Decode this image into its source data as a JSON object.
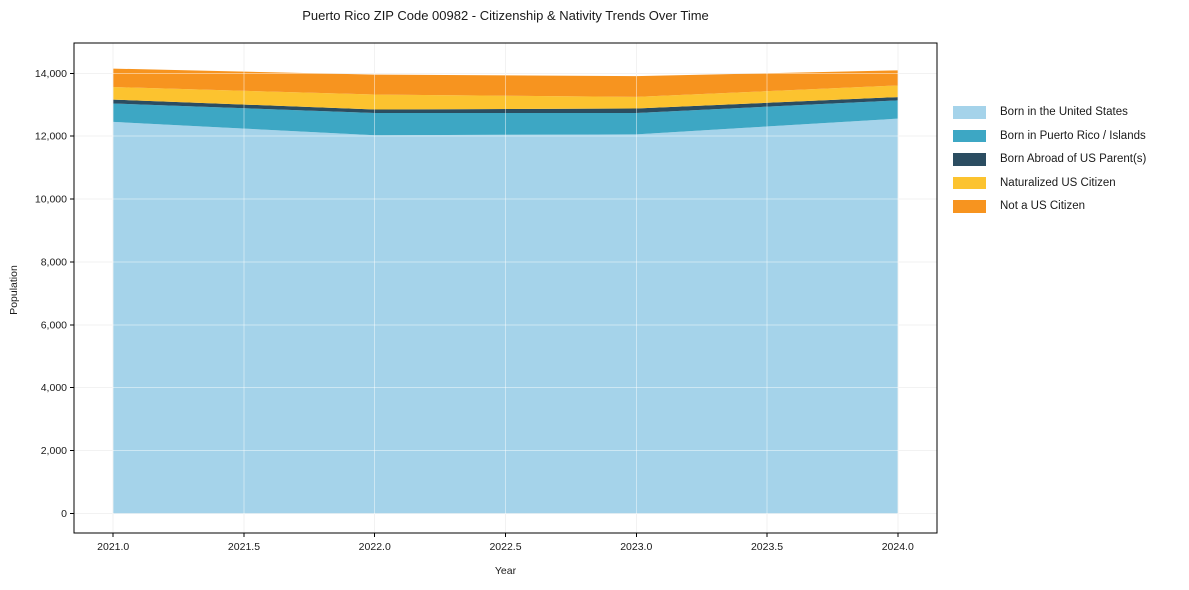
{
  "chart_data": {
    "type": "area",
    "stacked": true,
    "title": "Puerto Rico ZIP Code 00982 - Citizenship & Nativity Trends Over Time",
    "xlabel": "Year",
    "ylabel": "Population",
    "x": [
      2021,
      2022,
      2023,
      2024
    ],
    "series": [
      {
        "name": "Born in the United States",
        "color": "#a5d3ea",
        "values": [
          12455,
          12030,
          12060,
          12560
        ]
      },
      {
        "name": "Born in Puerto Rico / Islands",
        "color": "#3da7c4",
        "values": [
          585,
          710,
          680,
          580
        ]
      },
      {
        "name": "Born Abroad of US Parent(s)",
        "color": "#2b4d61",
        "values": [
          125,
          110,
          140,
          105
        ]
      },
      {
        "name": "Naturalized US Citizen",
        "color": "#fcc32f",
        "values": [
          400,
          475,
          370,
          370
        ]
      },
      {
        "name": "Not a US Citizen",
        "color": "#f7941f",
        "values": [
          585,
          635,
          660,
          480
        ]
      }
    ],
    "xlim": [
      2020.85,
      2024.15
    ],
    "ylim": [
      -620,
      14965
    ],
    "x_ticks": [
      2021.0,
      2021.5,
      2022.0,
      2022.5,
      2023.0,
      2023.5,
      2024.0
    ],
    "y_ticks": [
      0,
      2000,
      4000,
      6000,
      8000,
      10000,
      12000,
      14000
    ],
    "grid": true,
    "grid_color": "#e8e8e8",
    "grid_overlay_color": "rgba(255,255,255,0.45)",
    "spine_color": "#000000",
    "tick_label_color": "#1a1a1a",
    "legend_position": "right"
  }
}
